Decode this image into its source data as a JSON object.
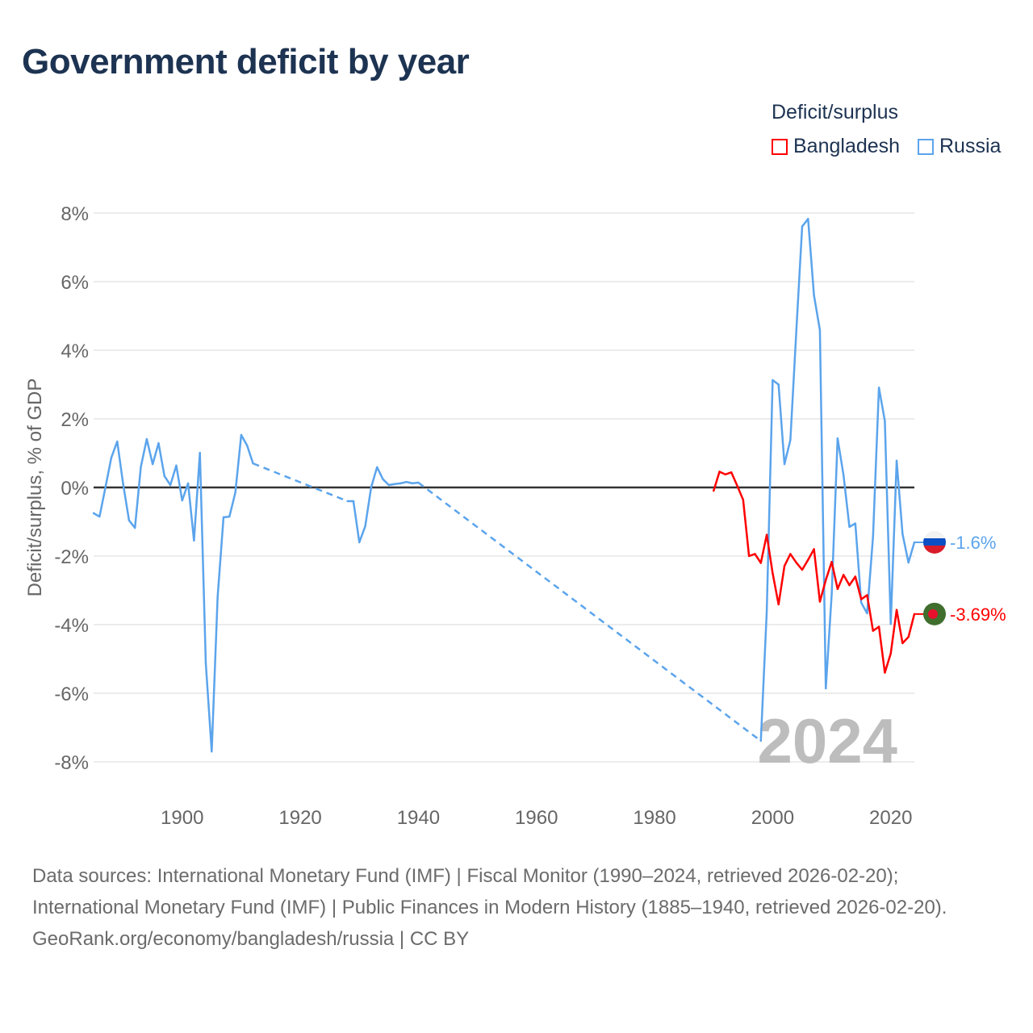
{
  "title": "Government deficit by year",
  "legend": {
    "title": "Deficit/surplus",
    "items": [
      {
        "label": "Bangladesh",
        "color": "#ff0000"
      },
      {
        "label": "Russia",
        "color": "#5ba4ec"
      }
    ]
  },
  "year_watermark": "2024",
  "footer": {
    "sources": "Data sources: International Monetary Fund (IMF) | Fiscal Monitor (1990–2024, retrieved 2026-02-20); International Monetary Fund (IMF) | Public Finances in Modern History (1885–1940, retrieved 2026-02-20).",
    "credit": "GeoRank.org/economy/bangladesh/russia | CC BY"
  },
  "chart_data": {
    "type": "line",
    "title": "Government deficit by year",
    "xlabel": "",
    "ylabel": "Deficit/surplus, % of GDP",
    "xlim": [
      1885,
      2024
    ],
    "ylim": [
      -8.5,
      8.5
    ],
    "x_ticks": [
      "1900",
      "1920",
      "1940",
      "1960",
      "1980",
      "2000",
      "2020"
    ],
    "y_ticks": [
      "8%",
      "6%",
      "4%",
      "2%",
      "0%",
      "-2%",
      "-4%",
      "-6%",
      "-8%"
    ],
    "grid": true,
    "legend_position": "top-right",
    "series": [
      {
        "name": "Russia",
        "color": "#5ba4ec",
        "end_label": "-1.6%",
        "flag": "russia",
        "points": [
          [
            1885,
            -0.75
          ],
          [
            1886,
            -0.85
          ],
          [
            1887,
            0
          ],
          [
            1888,
            0.87
          ],
          [
            1889,
            1.34
          ],
          [
            1890,
            0.1
          ],
          [
            1891,
            -0.96
          ],
          [
            1892,
            -1.18
          ],
          [
            1893,
            0.6
          ],
          [
            1894,
            1.41
          ],
          [
            1895,
            0.68
          ],
          [
            1896,
            1.29
          ],
          [
            1897,
            0.33
          ],
          [
            1898,
            0.07
          ],
          [
            1899,
            0.64
          ],
          [
            1900,
            -0.38
          ],
          [
            1901,
            0.12
          ],
          [
            1902,
            -1.55
          ],
          [
            1903,
            1.01
          ],
          [
            1904,
            -5.13
          ],
          [
            1905,
            -7.7
          ],
          [
            1906,
            -3.2
          ],
          [
            1907,
            -0.87
          ],
          [
            1908,
            -0.85
          ],
          [
            1909,
            -0.15
          ],
          [
            1910,
            1.53
          ],
          [
            1911,
            1.22
          ],
          [
            1912,
            0.7
          ],
          [
            1928,
            -0.4
          ],
          [
            1929,
            -0.4
          ],
          [
            1930,
            -1.6
          ],
          [
            1931,
            -1.13
          ],
          [
            1932,
            0
          ],
          [
            1933,
            0.59
          ],
          [
            1934,
            0.24
          ],
          [
            1935,
            0.07
          ],
          [
            1936,
            0.1
          ],
          [
            1937,
            0.12
          ],
          [
            1938,
            0.16
          ],
          [
            1939,
            0.12
          ],
          [
            1940,
            0.14
          ],
          [
            1998,
            -7.39
          ],
          [
            1999,
            -3.62
          ],
          [
            2000,
            3.13
          ],
          [
            2001,
            3.0
          ],
          [
            2002,
            0.68
          ],
          [
            2003,
            1.38
          ],
          [
            2004,
            4.54
          ],
          [
            2005,
            7.61
          ],
          [
            2006,
            7.83
          ],
          [
            2007,
            5.6
          ],
          [
            2008,
            4.59
          ],
          [
            2009,
            -5.86
          ],
          [
            2010,
            -3.11
          ],
          [
            2011,
            1.43
          ],
          [
            2012,
            0.36
          ],
          [
            2013,
            -1.15
          ],
          [
            2014,
            -1.05
          ],
          [
            2015,
            -3.36
          ],
          [
            2016,
            -3.67
          ],
          [
            2017,
            -1.43
          ],
          [
            2018,
            2.91
          ],
          [
            2019,
            1.94
          ],
          [
            2020,
            -3.98
          ],
          [
            2021,
            0.78
          ],
          [
            2022,
            -1.36
          ],
          [
            2023,
            -2.19
          ],
          [
            2024,
            -1.6
          ]
        ]
      },
      {
        "name": "Bangladesh",
        "color": "#ff0000",
        "end_label": "-3.69%",
        "flag": "bangladesh",
        "points": [
          [
            1990,
            -0.1
          ],
          [
            1991,
            0.46
          ],
          [
            1992,
            0.38
          ],
          [
            1993,
            0.44
          ],
          [
            1994,
            0.05
          ],
          [
            1995,
            -0.36
          ],
          [
            1996,
            -2.0
          ],
          [
            1997,
            -1.94
          ],
          [
            1998,
            -2.2
          ],
          [
            1999,
            -1.38
          ],
          [
            2000,
            -2.5
          ],
          [
            2001,
            -3.41
          ],
          [
            2002,
            -2.29
          ],
          [
            2003,
            -1.94
          ],
          [
            2004,
            -2.19
          ],
          [
            2005,
            -2.4
          ],
          [
            2006,
            -2.11
          ],
          [
            2007,
            -1.8
          ],
          [
            2008,
            -3.33
          ],
          [
            2009,
            -2.7
          ],
          [
            2010,
            -2.17
          ],
          [
            2011,
            -2.96
          ],
          [
            2012,
            -2.55
          ],
          [
            2013,
            -2.85
          ],
          [
            2014,
            -2.6
          ],
          [
            2015,
            -3.26
          ],
          [
            2016,
            -3.14
          ],
          [
            2017,
            -4.18
          ],
          [
            2018,
            -4.06
          ],
          [
            2019,
            -5.4
          ],
          [
            2020,
            -4.84
          ],
          [
            2021,
            -3.57
          ],
          [
            2022,
            -4.54
          ],
          [
            2023,
            -4.36
          ],
          [
            2024,
            -3.69
          ]
        ]
      }
    ]
  }
}
